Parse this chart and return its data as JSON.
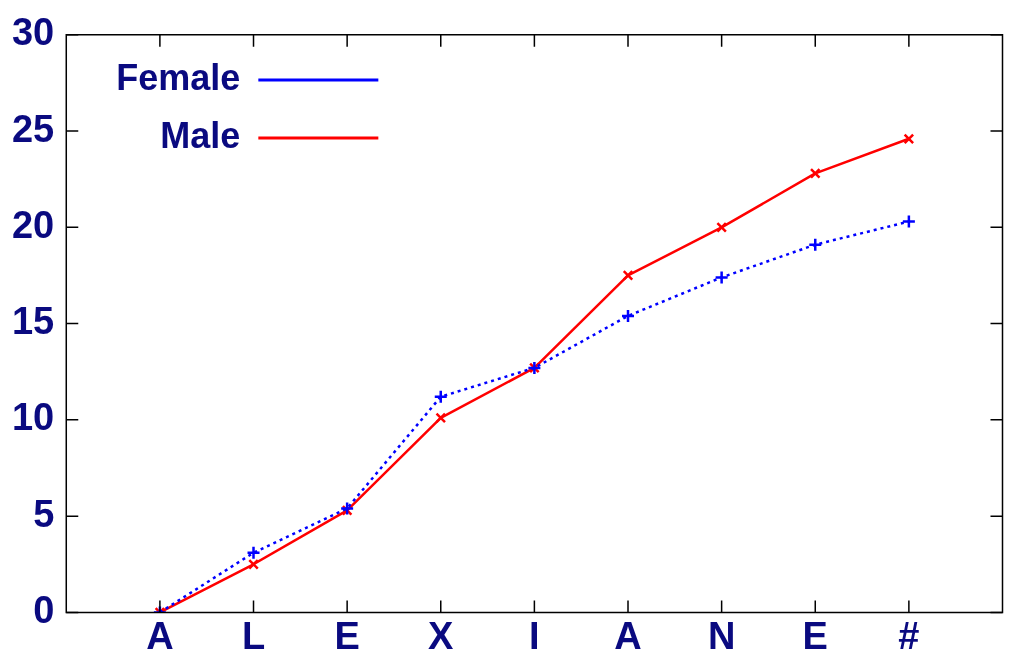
{
  "chart_data": {
    "type": "line",
    "categories": [
      "A",
      "L",
      "E",
      "X",
      "I",
      "A",
      "N",
      "E",
      "#"
    ],
    "series": [
      {
        "name": "Female",
        "color": "#0000ff",
        "marker": "plus",
        "line_style": "dotted",
        "values": [
          0,
          3.1,
          5.4,
          11.2,
          12.7,
          15.4,
          17.4,
          19.1,
          20.3
        ]
      },
      {
        "name": "Male",
        "color": "#ff0000",
        "marker": "cross",
        "line_style": "solid",
        "values": [
          0,
          2.5,
          5.3,
          10.1,
          12.7,
          17.5,
          20.0,
          22.8,
          24.6
        ]
      }
    ],
    "ylim": [
      0,
      30
    ],
    "yticks": [
      0,
      5,
      10,
      15,
      20,
      25,
      30
    ],
    "grid": false,
    "legend": "top left"
  }
}
